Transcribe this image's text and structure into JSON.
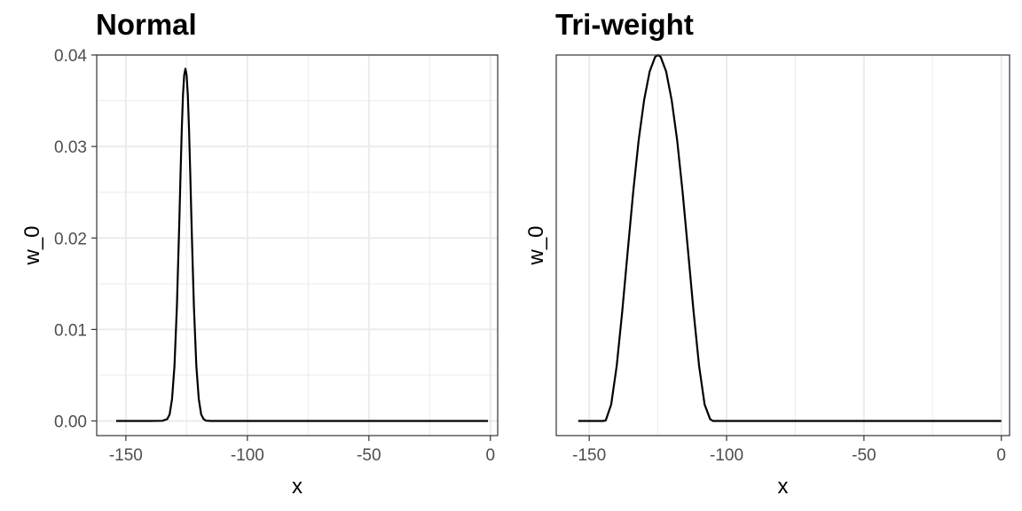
{
  "chart_data": [
    {
      "type": "line",
      "title": "Normal",
      "xlabel": "x",
      "ylabel": "w_0",
      "xlim": [
        -162,
        3
      ],
      "ylim": [
        -0.0016,
        0.04
      ],
      "x_ticks": [
        -150,
        -100,
        -50,
        0
      ],
      "x_tick_labels": [
        "-150",
        "-100",
        "-50",
        "0"
      ],
      "y_ticks": [
        0.0,
        0.01,
        0.02,
        0.03,
        0.04
      ],
      "y_tick_labels": [
        "0.00",
        "0.01",
        "0.02",
        "0.03",
        "0.04"
      ],
      "grid": true,
      "legend": "none",
      "series": [
        {
          "x": [
            -154,
            -140,
            -135,
            -133,
            -132,
            -131,
            -130,
            -129,
            -128,
            -127.5,
            -127,
            -126.5,
            -126,
            -125.5,
            -125,
            -124.5,
            -124,
            -123.5,
            -123,
            -122.5,
            -122,
            -121,
            -120,
            -119,
            -118,
            -117,
            -115,
            -110,
            -80,
            -50,
            -20,
            -1
          ],
          "y": [
            0,
            0,
            2e-05,
            0.0002,
            0.0007,
            0.0024,
            0.006,
            0.0125,
            0.0218,
            0.027,
            0.0318,
            0.0356,
            0.0378,
            0.0385,
            0.0378,
            0.0356,
            0.0318,
            0.027,
            0.0218,
            0.017,
            0.0125,
            0.006,
            0.0024,
            0.0007,
            0.0002,
            3e-05,
            0,
            0,
            0,
            0,
            0,
            0
          ]
        }
      ]
    },
    {
      "type": "line",
      "title": "Tri-weight",
      "xlabel": "x",
      "ylabel": "w_0",
      "xlim": [
        -162,
        3
      ],
      "ylim": [
        -0.0016,
        0.04
      ],
      "x_ticks": [
        -150,
        -100,
        -50,
        0
      ],
      "x_tick_labels": [
        "-150",
        "-100",
        "-50",
        "0"
      ],
      "grid": true,
      "legend": "none",
      "series": [
        {
          "x": [
            -154,
            -145,
            -144,
            -142,
            -140,
            -138,
            -136,
            -134,
            -132,
            -130,
            -128,
            -126,
            -125,
            -124,
            -122,
            -120,
            -118,
            -116,
            -114,
            -112,
            -110,
            -108,
            -106,
            -105,
            -100,
            -75,
            -50,
            -25,
            0
          ],
          "y": [
            0,
            0,
            5e-05,
            0.0018,
            0.006,
            0.0119,
            0.0185,
            0.025,
            0.0307,
            0.0351,
            0.0382,
            0.0398,
            0.04,
            0.0398,
            0.0382,
            0.0351,
            0.0307,
            0.025,
            0.0185,
            0.0119,
            0.006,
            0.0018,
            0.0002,
            0,
            0,
            0,
            0,
            0,
            0
          ]
        }
      ]
    }
  ]
}
